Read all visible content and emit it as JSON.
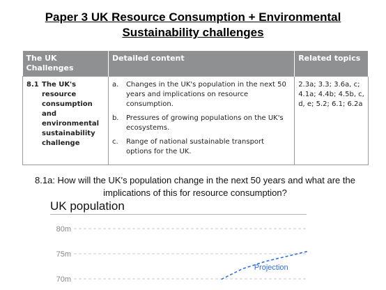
{
  "title": {
    "line1": "Paper 3 UK Resource Consumption + Environmental",
    "line2": "Sustainability challenges"
  },
  "table": {
    "headers": [
      "The UK Challenges",
      "Detailed content",
      "Related topics"
    ],
    "challenge_number": "8.1",
    "challenge_text": "The UK's resource consumption and environmental sustainability challenge",
    "content_items": [
      {
        "letter": "a.",
        "text": "Changes in the UK's population in the next 50 years and implications on resource consumption."
      },
      {
        "letter": "b.",
        "text": "Pressures of growing populations on the UK's ecosystems."
      },
      {
        "letter": "c.",
        "text": "Range of national sustainable transport options for the UK."
      }
    ],
    "related_topics": "2.3a; 3.3; 3.6a, c; 4.1a; 4.4b; 4.5b, c, d, e; 5.2; 6.1; 6.2a"
  },
  "question": "8.1a: How will the UK's population change in the next 50 years and what are the implications of this for resource consumption?",
  "chart_data": {
    "type": "line",
    "title": "UK population",
    "y_ticks": [
      "80m",
      "75m",
      "70m"
    ],
    "annotations": [
      "Projection"
    ],
    "series": [
      {
        "name": "Projection",
        "style": "dashed",
        "color": "#2f6fd6",
        "x": [
          0.63,
          0.72,
          0.82,
          0.92,
          1.0
        ],
        "y": [
          69.9,
          72.0,
          73.5,
          74.6,
          75.5
        ]
      }
    ],
    "ylim": [
      68.5,
      81.5
    ],
    "grid": true
  }
}
